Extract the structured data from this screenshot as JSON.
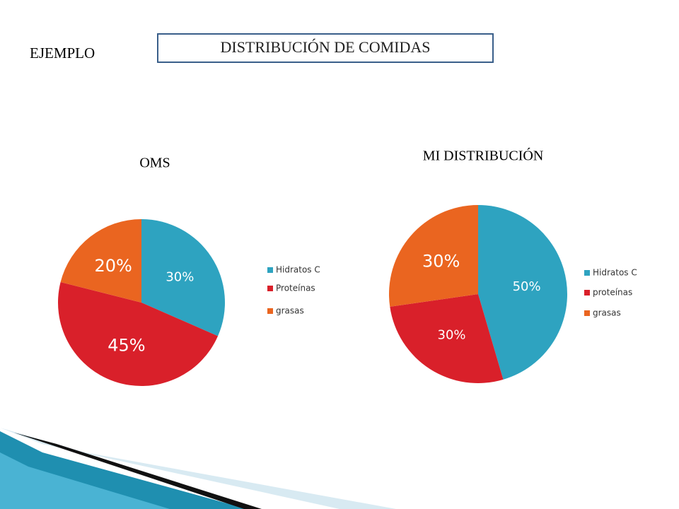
{
  "header": {
    "label": "EJEMPLO",
    "title": "DISTRIBUCIÓN DE COMIDAS"
  },
  "chart_data": [
    {
      "type": "pie",
      "title": "OMS",
      "categories": [
        "Hidratos C",
        "Proteínas",
        "grasas"
      ],
      "values": [
        30,
        45,
        20
      ],
      "value_labels": [
        "30%",
        "45%",
        "20%"
      ],
      "colors": [
        "#2ea3c0",
        "#d9202a",
        "#ea6520"
      ],
      "legend": "right"
    },
    {
      "type": "pie",
      "title": "MI DISTRIBUCIÓN",
      "categories": [
        "Hidratos C",
        "proteínas",
        "grasas"
      ],
      "values": [
        50,
        30,
        30
      ],
      "value_labels": [
        "50%",
        "30%",
        "30%"
      ],
      "colors": [
        "#2ea3c0",
        "#d9202a",
        "#ea6520"
      ],
      "legend": "right"
    }
  ]
}
